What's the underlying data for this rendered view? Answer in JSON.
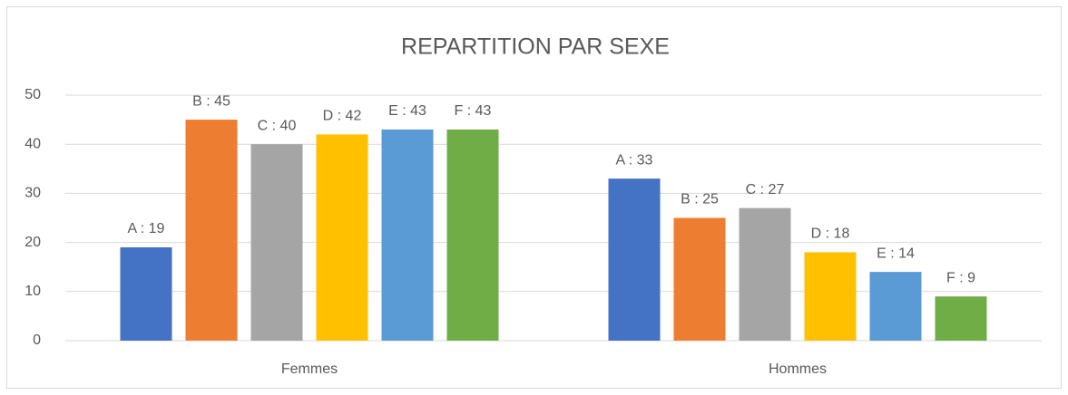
{
  "chart_data": {
    "type": "bar",
    "title": "REPARTITION PAR SEXE",
    "categories": [
      "Femmes",
      "Hommes"
    ],
    "series": [
      {
        "color": "#4472c4",
        "values": [
          19,
          33
        ],
        "value_labels": [
          "A : 19",
          "A : 33"
        ]
      },
      {
        "color": "#ed7d31",
        "values": [
          45,
          25
        ],
        "value_labels": [
          "B : 45",
          "B : 25"
        ]
      },
      {
        "color": "#a5a5a5",
        "values": [
          40,
          27
        ],
        "value_labels": [
          "C : 40",
          "C : 27"
        ]
      },
      {
        "color": "#ffc000",
        "values": [
          42,
          18
        ],
        "value_labels": [
          "D : 42",
          "D : 18"
        ]
      },
      {
        "color": "#5b9bd5",
        "values": [
          43,
          14
        ],
        "value_labels": [
          "E : 43",
          "E : 14"
        ]
      },
      {
        "color": "#70ad47",
        "values": [
          43,
          9
        ],
        "value_labels": [
          "F : 43",
          "F : 9"
        ]
      }
    ],
    "ylim": [
      0,
      50
    ],
    "yticks": [
      0,
      10,
      20,
      30,
      40,
      50
    ],
    "grid": true
  }
}
